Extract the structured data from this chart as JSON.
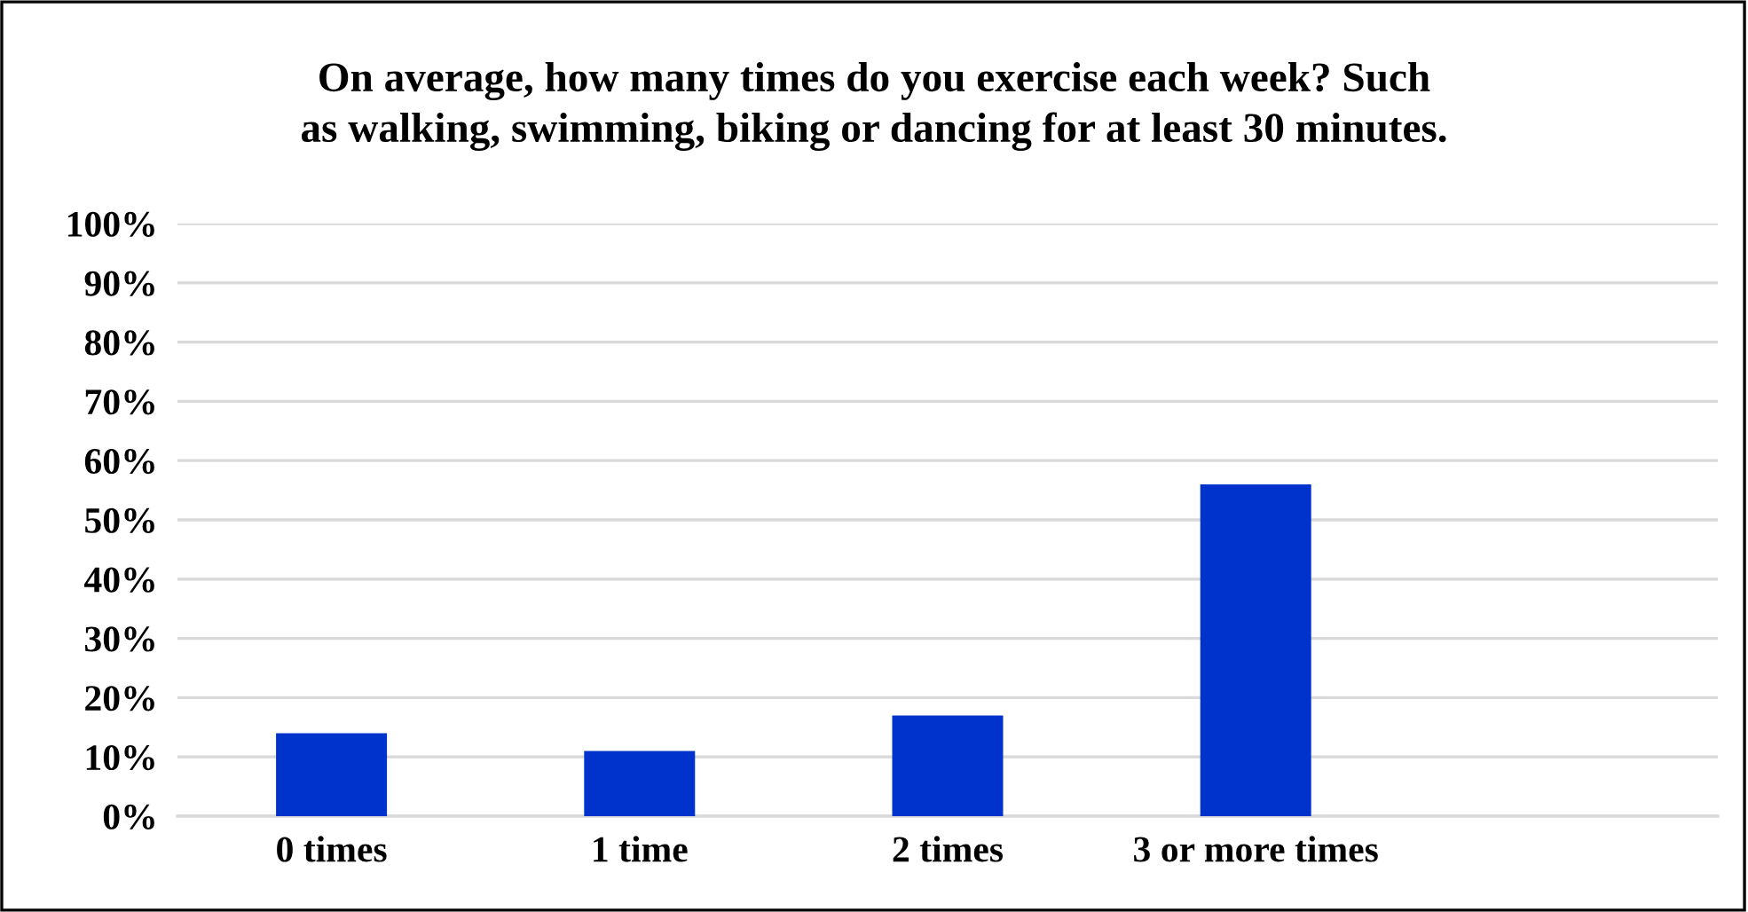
{
  "chart_data": {
    "type": "bar",
    "title": "On average, how many times do you exercise each week? Such\nas walking, swimming, biking or dancing for at least 30 minutes.",
    "categories": [
      "0 times",
      "1 time",
      "2 times",
      "3 or more times",
      null
    ],
    "values": [
      14,
      11,
      17,
      56,
      null
    ],
    "color": "#0033cc",
    "ylim": [
      0,
      100
    ],
    "yticks": [
      {
        "value": 0,
        "label": "0%"
      },
      {
        "value": 10,
        "label": "10%"
      },
      {
        "value": 20,
        "label": "20%"
      },
      {
        "value": 30,
        "label": "30%"
      },
      {
        "value": 40,
        "label": "40%"
      },
      {
        "value": 50,
        "label": "50%"
      },
      {
        "value": 60,
        "label": "60%"
      },
      {
        "value": 70,
        "label": "70%"
      },
      {
        "value": 80,
        "label": "80%"
      },
      {
        "value": 90,
        "label": "90%"
      },
      {
        "value": 100,
        "label": "100%"
      }
    ],
    "grid": "y"
  }
}
